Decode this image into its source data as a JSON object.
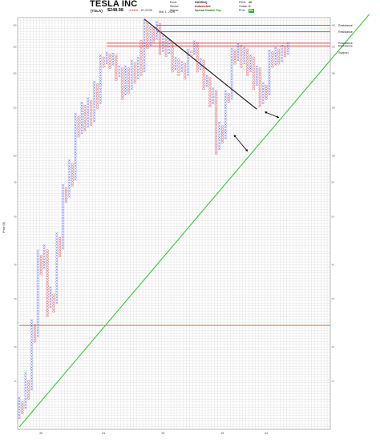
{
  "header": {
    "title": "TESLA INC",
    "ticker": "(TSLA)",
    "price": "$248.98",
    "change": "-2.51%",
    "volume": "57,023K",
    "date": "Mar 1, 2024",
    "info": [
      {
        "label": "Exch:",
        "value": "NASDAQ",
        "cls": ""
      },
      {
        "label": "Sector:",
        "value": "Automotive",
        "cls": "red"
      },
      {
        "label": "Signal:",
        "value": "Spread Double Top",
        "cls": "green"
      }
    ],
    "extras": [
      {
        "label": "RS%:",
        "value": "10",
        "badge": false
      },
      {
        "label": "Grade:",
        "value": "C",
        "badge": false
      },
      {
        "label": "Prof:",
        "value": "BU",
        "badge": true
      }
    ]
  },
  "colors": {
    "x_mark": "#3c50e6",
    "o_mark": "#e0505a",
    "resistance": "#e03c3c",
    "support_trend": "#38c838",
    "downtrend": "#111111",
    "grid": "#cfcfcf"
  },
  "chart_data": {
    "type": "point-and-figure",
    "title": "TESLA INC",
    "ylabel": "Price ($)",
    "y_scale": "log",
    "ylim": [
      10,
      320
    ],
    "grid": true,
    "x_tick_labels": [
      "20",
      "21",
      "22",
      "23",
      "24"
    ],
    "x_tick_columns": [
      7,
      27,
      46,
      65,
      79
    ],
    "y_tick_labels": [
      "300",
      "250",
      "200",
      "150",
      "100",
      "80",
      "60",
      "40",
      "30",
      "20",
      "15"
    ],
    "columns": [
      {
        "t": "X",
        "lo": 11,
        "hi": 13
      },
      {
        "t": "O",
        "lo": 11.5,
        "hi": 12.5
      },
      {
        "t": "X",
        "lo": 12,
        "hi": 16
      },
      {
        "t": "O",
        "lo": 13,
        "hi": 15
      },
      {
        "t": "X",
        "lo": 14,
        "hi": 25
      },
      {
        "t": "O",
        "lo": 21,
        "hi": 24
      },
      {
        "t": "X",
        "lo": 22,
        "hi": 45
      },
      {
        "t": "O",
        "lo": 37,
        "hi": 43
      },
      {
        "t": "X",
        "lo": 39,
        "hi": 47
      },
      {
        "t": "O",
        "lo": 26,
        "hi": 45
      },
      {
        "t": "X",
        "lo": 28,
        "hi": 33
      },
      {
        "t": "O",
        "lo": 27,
        "hi": 31
      },
      {
        "t": "X",
        "lo": 29,
        "hi": 52
      },
      {
        "t": "O",
        "lo": 43,
        "hi": 50
      },
      {
        "t": "X",
        "lo": 46,
        "hi": 78
      },
      {
        "t": "O",
        "lo": 68,
        "hi": 76
      },
      {
        "t": "X",
        "lo": 71,
        "hi": 96
      },
      {
        "t": "O",
        "lo": 78,
        "hi": 93
      },
      {
        "t": "X",
        "lo": 82,
        "hi": 142
      },
      {
        "t": "O",
        "lo": 118,
        "hi": 138
      },
      {
        "t": "X",
        "lo": 121,
        "hi": 156
      },
      {
        "t": "O",
        "lo": 124,
        "hi": 152
      },
      {
        "t": "X",
        "lo": 128,
        "hi": 162
      },
      {
        "t": "O",
        "lo": 130,
        "hi": 158
      },
      {
        "t": "X",
        "lo": 134,
        "hi": 186
      },
      {
        "t": "O",
        "lo": 150,
        "hi": 182
      },
      {
        "t": "X",
        "lo": 156,
        "hi": 232
      },
      {
        "t": "O",
        "lo": 212,
        "hi": 228
      },
      {
        "t": "X",
        "lo": 218,
        "hi": 238
      },
      {
        "t": "O",
        "lo": 210,
        "hi": 234
      },
      {
        "t": "X",
        "lo": 216,
        "hi": 236
      },
      {
        "t": "O",
        "lo": 190,
        "hi": 232
      },
      {
        "t": "X",
        "lo": 196,
        "hi": 212
      },
      {
        "t": "O",
        "lo": 162,
        "hi": 208
      },
      {
        "t": "X",
        "lo": 168,
        "hi": 212
      },
      {
        "t": "O",
        "lo": 170,
        "hi": 208
      },
      {
        "t": "X",
        "lo": 176,
        "hi": 222
      },
      {
        "t": "O",
        "lo": 186,
        "hi": 218
      },
      {
        "t": "X",
        "lo": 192,
        "hi": 228
      },
      {
        "t": "O",
        "lo": 198,
        "hi": 262
      },
      {
        "t": "X",
        "lo": 204,
        "hi": 312
      },
      {
        "t": "O",
        "lo": 248,
        "hi": 306
      },
      {
        "t": "X",
        "lo": 254,
        "hi": 296
      },
      {
        "t": "O",
        "lo": 262,
        "hi": 292
      },
      {
        "t": "X",
        "lo": 268,
        "hi": 308
      },
      {
        "t": "O",
        "lo": 236,
        "hi": 302
      },
      {
        "t": "X",
        "lo": 242,
        "hi": 274
      },
      {
        "t": "O",
        "lo": 232,
        "hi": 268
      },
      {
        "t": "X",
        "lo": 238,
        "hi": 264
      },
      {
        "t": "O",
        "lo": 204,
        "hi": 258
      },
      {
        "t": "X",
        "lo": 208,
        "hi": 228
      },
      {
        "t": "O",
        "lo": 198,
        "hi": 224
      },
      {
        "t": "X",
        "lo": 204,
        "hi": 220
      },
      {
        "t": "O",
        "lo": 192,
        "hi": 216
      },
      {
        "t": "X",
        "lo": 198,
        "hi": 244
      },
      {
        "t": "O",
        "lo": 232,
        "hi": 240
      },
      {
        "t": "X",
        "lo": 236,
        "hi": 262
      },
      {
        "t": "O",
        "lo": 204,
        "hi": 258
      },
      {
        "t": "X",
        "lo": 208,
        "hi": 226
      },
      {
        "t": "O",
        "lo": 176,
        "hi": 222
      },
      {
        "t": "X",
        "lo": 180,
        "hi": 196
      },
      {
        "t": "O",
        "lo": 152,
        "hi": 192
      },
      {
        "t": "X",
        "lo": 156,
        "hi": 176
      },
      {
        "t": "O",
        "lo": 102,
        "hi": 172
      },
      {
        "t": "X",
        "lo": 106,
        "hi": 132
      },
      {
        "t": "O",
        "lo": 112,
        "hi": 128
      },
      {
        "t": "X",
        "lo": 116,
        "hi": 172
      },
      {
        "t": "O",
        "lo": 158,
        "hi": 168
      },
      {
        "t": "X",
        "lo": 162,
        "hi": 246
      },
      {
        "t": "O",
        "lo": 218,
        "hi": 242
      },
      {
        "t": "X",
        "lo": 224,
        "hi": 256
      },
      {
        "t": "O",
        "lo": 212,
        "hi": 252
      },
      {
        "t": "X",
        "lo": 218,
        "hi": 248
      },
      {
        "t": "O",
        "lo": 198,
        "hi": 244
      },
      {
        "t": "X",
        "lo": 204,
        "hi": 232
      },
      {
        "t": "O",
        "lo": 176,
        "hi": 228
      },
      {
        "t": "X",
        "lo": 182,
        "hi": 212
      },
      {
        "t": "O",
        "lo": 152,
        "hi": 208
      },
      {
        "t": "X",
        "lo": 156,
        "hi": 184
      },
      {
        "t": "O",
        "lo": 162,
        "hi": 180
      },
      {
        "t": "X",
        "lo": 168,
        "hi": 242
      },
      {
        "t": "O",
        "lo": 212,
        "hi": 238
      },
      {
        "t": "X",
        "lo": 216,
        "hi": 248
      },
      {
        "t": "O",
        "lo": 218,
        "hi": 244
      },
      {
        "t": "X",
        "lo": 222,
        "hi": 252
      },
      {
        "t": "O",
        "lo": 232,
        "hi": 248
      },
      {
        "t": "X",
        "lo": 236,
        "hi": 258
      }
    ],
    "resistance": [
      {
        "label": "Resistance",
        "price": 300,
        "from_col": 44
      },
      {
        "label": "Resistance",
        "price": 284,
        "from_col": 44
      },
      {
        "label": "Resistance",
        "price": 258,
        "from_col": 28
      },
      {
        "label": "Resistance",
        "price": 252,
        "from_col": 28
      },
      {
        "label": "Resistance",
        "price": 24,
        "from_col": 0
      }
    ],
    "support": [
      {
        "label": "Support",
        "price": 238
      }
    ],
    "downtrend": {
      "from": [
        40,
        316
      ],
      "to": [
        76,
        148
      ]
    },
    "uptrend": {
      "from": [
        0,
        10.2
      ],
      "to": [
        99,
        220
      ]
    },
    "arrows": [
      {
        "from": [
          69,
          118
        ],
        "to": [
          73,
          104
        ]
      },
      {
        "from": [
          79,
          144
        ],
        "to": [
          83,
          138
        ]
      }
    ]
  }
}
